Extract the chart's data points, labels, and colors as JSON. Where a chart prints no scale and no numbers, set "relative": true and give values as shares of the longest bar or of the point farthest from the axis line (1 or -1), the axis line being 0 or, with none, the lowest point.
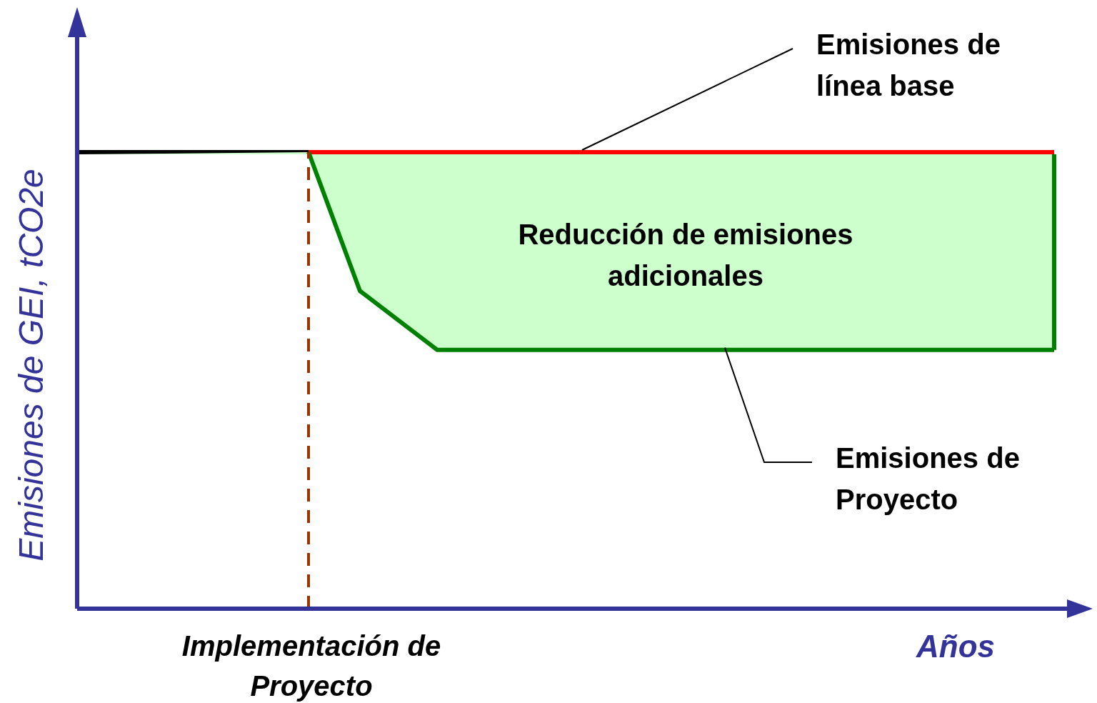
{
  "chart_data": {
    "type": "line",
    "relative": true,
    "xlabel": "Años",
    "ylabel": "Emisiones de GEI, tCO2e",
    "categories": [
      null,
      null,
      null,
      null,
      null,
      null,
      null,
      null,
      null,
      null,
      null,
      null,
      null,
      null,
      null,
      null,
      null,
      null,
      null,
      null,
      null,
      null,
      null,
      null,
      null,
      null,
      null,
      null,
      null,
      null,
      null,
      null,
      null,
      null,
      null,
      null,
      null,
      null,
      null,
      null
    ],
    "series": [
      {
        "color": "#000000",
        "values": [
          1,
          1,
          1,
          1,
          1,
          1,
          1,
          1,
          1,
          1,
          null,
          null,
          null,
          null,
          null,
          null,
          null,
          null,
          null,
          null,
          null,
          null,
          null,
          null,
          null,
          null,
          null,
          null,
          null,
          null,
          null,
          null,
          null,
          null,
          null,
          null,
          null,
          null,
          null,
          null
        ]
      },
      {
        "name": "Emisiones de línea base",
        "color": "#ff0000",
        "values": [
          null,
          null,
          null,
          null,
          null,
          null,
          null,
          null,
          null,
          1,
          1,
          1,
          1,
          1,
          1,
          1,
          1,
          1,
          1,
          1,
          1,
          1,
          1,
          1,
          1,
          1,
          1,
          1,
          1,
          1,
          1,
          1,
          1,
          1,
          1,
          1,
          1,
          1,
          1,
          null
        ]
      },
      {
        "name": "Emisiones de Proyecto",
        "color": "#008000",
        "values": [
          null,
          null,
          null,
          null,
          null,
          null,
          null,
          null,
          null,
          1,
          null,
          0.696,
          null,
          null,
          0.567,
          null,
          null,
          null,
          null,
          null,
          null,
          null,
          null,
          null,
          null,
          null,
          null,
          null,
          null,
          null,
          null,
          null,
          null,
          null,
          null,
          null,
          null,
          null,
          0.567,
          null
        ]
      }
    ],
    "annotations": [
      "Reducción de emisiones adicionales",
      "Implementación de Proyecto"
    ]
  }
}
